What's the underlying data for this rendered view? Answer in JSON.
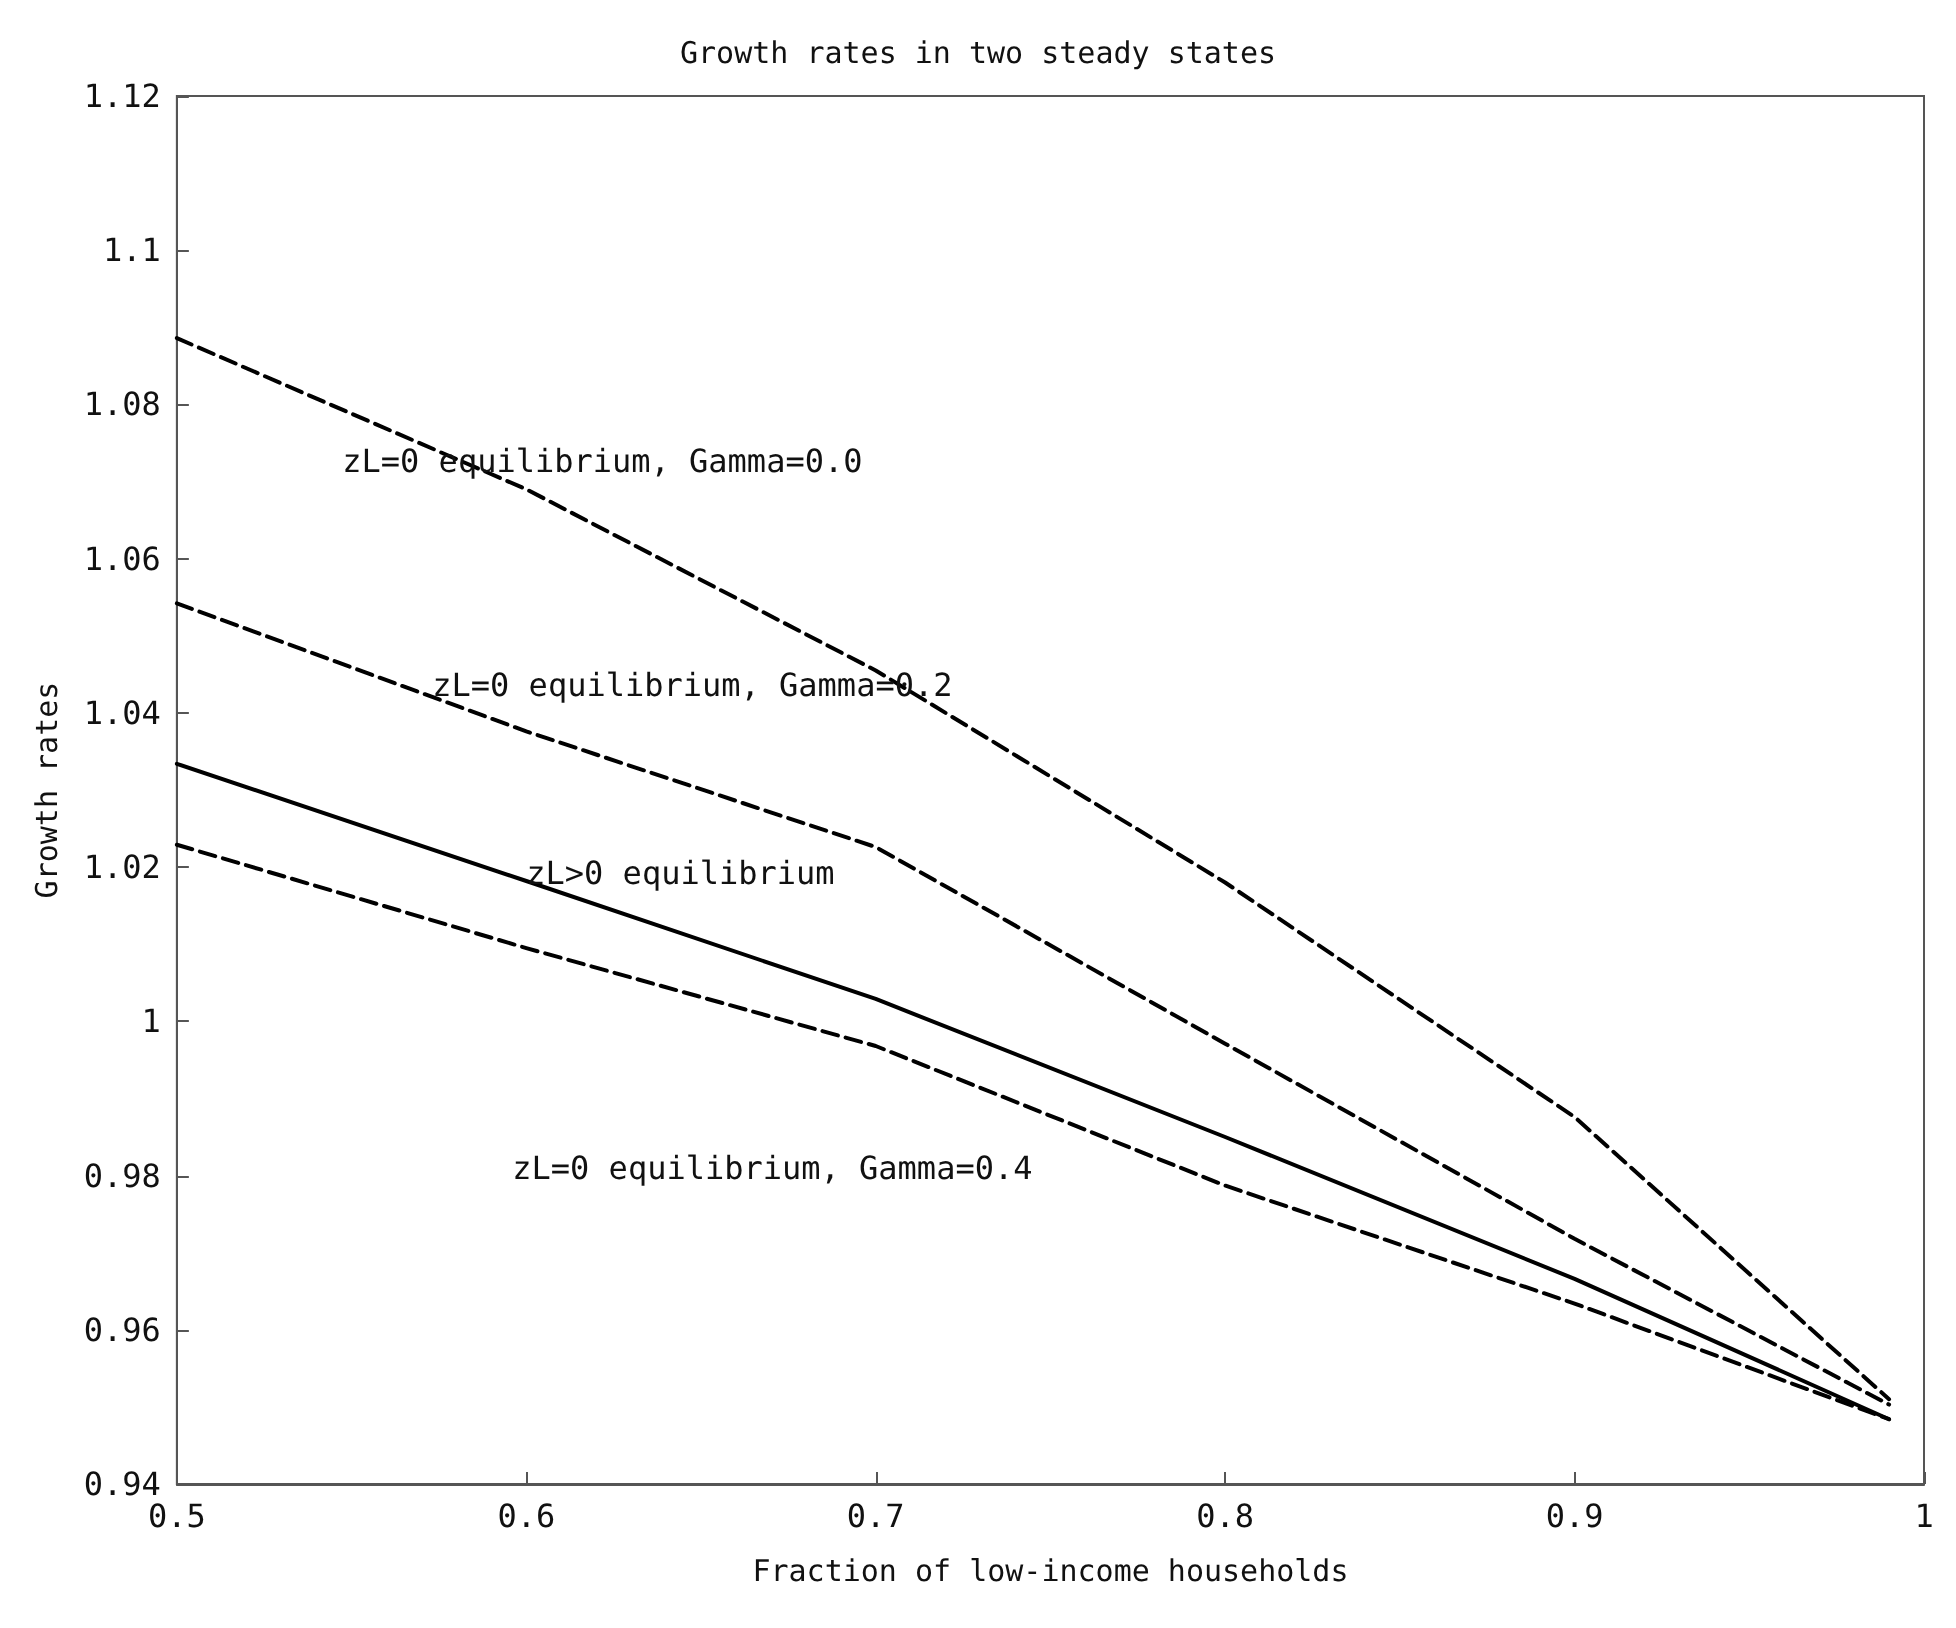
{
  "chart_data": {
    "type": "line",
    "title": "Growth rates in two steady states",
    "xlabel": "Fraction of low-income households",
    "ylabel": "Growth rates",
    "xlim": [
      0.5,
      1
    ],
    "xticks": [
      0.5,
      0.6,
      0.7,
      0.8,
      0.9,
      1
    ],
    "ylim": [
      0.94,
      1.12
    ],
    "yticks": [
      0.94,
      0.96,
      0.98,
      1,
      1.02,
      1.04,
      1.06,
      1.08,
      1.1,
      1.12
    ],
    "grid": false,
    "legend": false,
    "marker": "none",
    "series": [
      {
        "name": "zL=0 equilibrium, Gamma=0.0",
        "color": "#000000",
        "line_style": "dashed",
        "x": [
          0.5,
          0.6,
          0.7,
          0.8,
          0.9,
          0.99
        ],
        "values": [
          1.0886,
          1.069,
          1.0455,
          1.018,
          0.9876,
          0.951
        ]
      },
      {
        "name": "zL=0 equilibrium, Gamma=0.2",
        "color": "#000000",
        "line_style": "dashed",
        "x": [
          0.5,
          0.6,
          0.7,
          0.8,
          0.9,
          0.99
        ],
        "values": [
          1.0542,
          1.0376,
          1.0226,
          0.9971,
          0.9718,
          0.9503
        ]
      },
      {
        "name": "zL>0 equilibrium",
        "color": "#000000",
        "line_style": "solid",
        "x": [
          0.5,
          0.6,
          0.7,
          0.8,
          0.9,
          0.99
        ],
        "values": [
          1.0334,
          1.0182,
          1.0029,
          0.985,
          0.9666,
          0.9484
        ]
      },
      {
        "name": "zL=0 equilibrium, Gamma=0.4",
        "color": "#000000",
        "line_style": "dashed",
        "x": [
          0.5,
          0.6,
          0.7,
          0.8,
          0.9,
          0.99
        ],
        "values": [
          1.0229,
          1.0095,
          0.9968,
          0.9787,
          0.9634,
          0.9484
        ]
      }
    ]
  }
}
